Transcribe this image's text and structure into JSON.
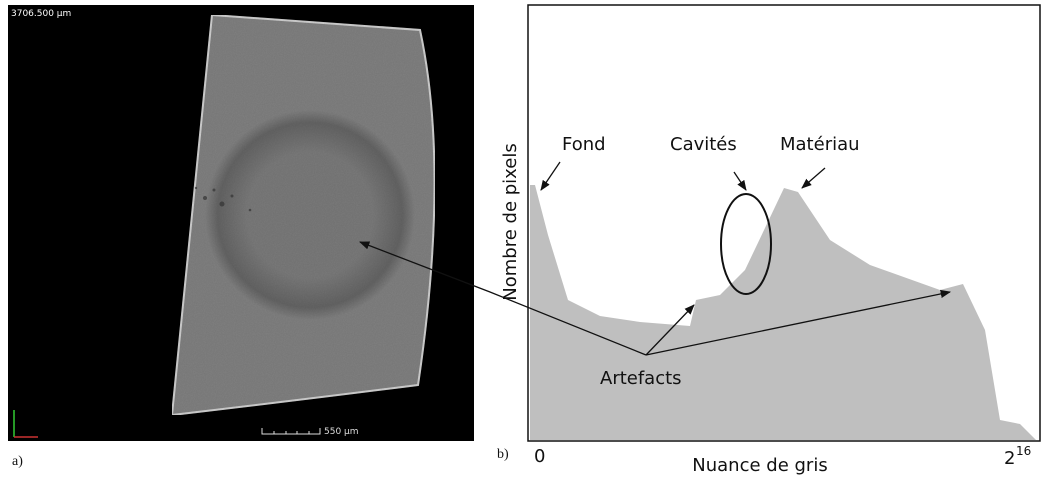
{
  "panel_a": {
    "label": "a)",
    "scale_top": "3706.500 µm",
    "scale_bar": "550 µm"
  },
  "panel_b": {
    "label": "b)",
    "y_axis": "Nombre de pixels",
    "x_axis": "Nuance de gris",
    "x_start": "0",
    "x_end": {
      "base": "2",
      "exponent": "16"
    },
    "annotations": [
      "Fond",
      "Cavités",
      "Matériau",
      "Artefacts"
    ]
  }
}
